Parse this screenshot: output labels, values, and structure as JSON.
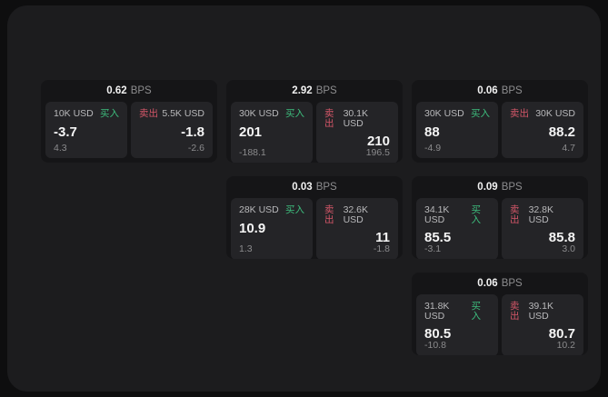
{
  "colors": {
    "background_outer": "#0e0e0f",
    "background_surface": "#1c1c1e",
    "card_background": "#151517",
    "panel_background": "#242427",
    "buy_green": "#3dbd7d",
    "sell_red": "#d35668",
    "text_primary": "#f5f5f5",
    "text_muted": "#8b8b8d"
  },
  "cards": [
    {
      "bps_value": "0.62",
      "bps_unit": "BPS",
      "buy": {
        "amount": "10K USD",
        "label": "买入",
        "value": "-3.7",
        "sub": "4.3"
      },
      "sell": {
        "label": "卖出",
        "amount": "5.5K USD",
        "value": "-1.8",
        "sub": "-2.6"
      }
    },
    {
      "bps_value": "2.92",
      "bps_unit": "BPS",
      "buy": {
        "amount": "30K USD",
        "label": "买入",
        "value": "201",
        "sub": "-188.1"
      },
      "sell": {
        "label": "卖出",
        "amount": "30.1K USD",
        "value": "210",
        "sub": "196.5"
      }
    },
    {
      "bps_value": "0.06",
      "bps_unit": "BPS",
      "buy": {
        "amount": "30K USD",
        "label": "买入",
        "value": "88",
        "sub": "-4.9"
      },
      "sell": {
        "label": "卖出",
        "amount": "30K USD",
        "value": "88.2",
        "sub": "4.7"
      }
    },
    {
      "bps_value": "0.03",
      "bps_unit": "BPS",
      "buy": {
        "amount": "28K USD",
        "label": "买入",
        "value": "10.9",
        "sub": "1.3"
      },
      "sell": {
        "label": "卖出",
        "amount": "32.6K USD",
        "value": "11",
        "sub": "-1.8"
      }
    },
    {
      "bps_value": "0.09",
      "bps_unit": "BPS",
      "buy": {
        "amount": "34.1K USD",
        "label": "买入",
        "value": "85.5",
        "sub": "-3.1"
      },
      "sell": {
        "label": "卖出",
        "amount": "32.8K USD",
        "value": "85.8",
        "sub": "3.0"
      }
    },
    {
      "bps_value": "0.06",
      "bps_unit": "BPS",
      "buy": {
        "amount": "31.8K USD",
        "label": "买入",
        "value": "80.5",
        "sub": "-10.8"
      },
      "sell": {
        "label": "卖出",
        "amount": "39.1K USD",
        "value": "80.7",
        "sub": "10.2"
      }
    }
  ]
}
